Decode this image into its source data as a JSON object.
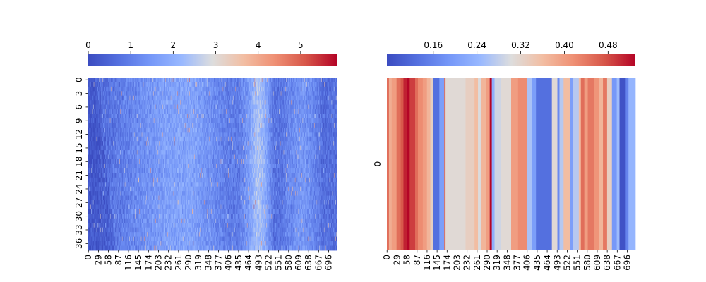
{
  "chart_data": [
    {
      "type": "heatmap",
      "colormap": "coolwarm",
      "colorbar": {
        "location": "top",
        "range": [
          0,
          5.85
        ],
        "ticks": [
          0,
          1,
          2,
          3,
          4,
          5
        ],
        "tick_labels": [
          "0",
          "1",
          "2",
          "3",
          "4",
          "5"
        ]
      },
      "rows": 38,
      "cols": 720,
      "x_tick_labels": [
        "0",
        "29",
        "58",
        "87",
        "116",
        "145",
        "174",
        "203",
        "232",
        "261",
        "290",
        "319",
        "348",
        "377",
        "406",
        "435",
        "464",
        "493",
        "522",
        "551",
        "580",
        "609",
        "638",
        "667",
        "696"
      ],
      "y_tick_labels": [
        "0",
        "3",
        "6",
        "9",
        "12",
        "15",
        "18",
        "21",
        "24",
        "27",
        "30",
        "33",
        "36"
      ],
      "column_profile": [
        {
          "x": 0,
          "v": 0.5
        },
        {
          "x": 40,
          "v": 0.65
        },
        {
          "x": 100,
          "v": 1.0
        },
        {
          "x": 170,
          "v": 1.4
        },
        {
          "x": 230,
          "v": 1.7
        },
        {
          "x": 300,
          "v": 1.75
        },
        {
          "x": 360,
          "v": 1.3
        },
        {
          "x": 410,
          "v": 0.95
        },
        {
          "x": 440,
          "v": 1.0
        },
        {
          "x": 460,
          "v": 1.5
        },
        {
          "x": 490,
          "v": 2.4
        },
        {
          "x": 505,
          "v": 2.2
        },
        {
          "x": 520,
          "v": 1.6
        },
        {
          "x": 535,
          "v": 0.8
        },
        {
          "x": 560,
          "v": 0.85
        },
        {
          "x": 590,
          "v": 1.3
        },
        {
          "x": 620,
          "v": 1.5
        },
        {
          "x": 650,
          "v": 1.2
        },
        {
          "x": 680,
          "v": 0.7
        },
        {
          "x": 719,
          "v": 0.7
        }
      ]
    },
    {
      "type": "heatmap",
      "colormap": "coolwarm",
      "colorbar": {
        "location": "top",
        "range": [
          0.075,
          0.53
        ],
        "ticks": [
          0.16,
          0.24,
          0.32,
          0.4,
          0.48
        ],
        "tick_labels": [
          "0.16",
          "0.24",
          "0.32",
          "0.40",
          "0.48"
        ]
      },
      "rows": 1,
      "cols": 720,
      "x_tick_labels": [
        "0",
        "29",
        "58",
        "87",
        "116",
        "145",
        "174",
        "203",
        "232",
        "261",
        "290",
        "319",
        "348",
        "377",
        "406",
        "435",
        "464",
        "493",
        "522",
        "551",
        "580",
        "609",
        "638",
        "667",
        "696"
      ],
      "y_tick_labels": [
        "0"
      ],
      "segments": [
        {
          "x0": 0,
          "x1": 6,
          "v": 0.45
        },
        {
          "x0": 6,
          "x1": 14,
          "v": 0.38
        },
        {
          "x0": 14,
          "x1": 28,
          "v": 0.4
        },
        {
          "x0": 28,
          "x1": 40,
          "v": 0.45
        },
        {
          "x0": 40,
          "x1": 48,
          "v": 0.47
        },
        {
          "x0": 48,
          "x1": 58,
          "v": 0.51
        },
        {
          "x0": 58,
          "x1": 66,
          "v": 0.53
        },
        {
          "x0": 66,
          "x1": 82,
          "v": 0.49
        },
        {
          "x0": 82,
          "x1": 90,
          "v": 0.45
        },
        {
          "x0": 90,
          "x1": 104,
          "v": 0.42
        },
        {
          "x0": 104,
          "x1": 116,
          "v": 0.4
        },
        {
          "x0": 116,
          "x1": 126,
          "v": 0.37
        },
        {
          "x0": 126,
          "x1": 134,
          "v": 0.33
        },
        {
          "x0": 134,
          "x1": 152,
          "v": 0.13
        },
        {
          "x0": 152,
          "x1": 166,
          "v": 0.2
        },
        {
          "x0": 166,
          "x1": 170,
          "v": 0.45
        },
        {
          "x0": 170,
          "x1": 228,
          "v": 0.31
        },
        {
          "x0": 228,
          "x1": 254,
          "v": 0.33
        },
        {
          "x0": 254,
          "x1": 264,
          "v": 0.36
        },
        {
          "x0": 264,
          "x1": 272,
          "v": 0.3
        },
        {
          "x0": 272,
          "x1": 288,
          "v": 0.37
        },
        {
          "x0": 288,
          "x1": 298,
          "v": 0.4
        },
        {
          "x0": 298,
          "x1": 304,
          "v": 0.53
        },
        {
          "x0": 304,
          "x1": 312,
          "v": 0.23
        },
        {
          "x0": 312,
          "x1": 330,
          "v": 0.29
        },
        {
          "x0": 330,
          "x1": 360,
          "v": 0.31
        },
        {
          "x0": 360,
          "x1": 380,
          "v": 0.4
        },
        {
          "x0": 380,
          "x1": 406,
          "v": 0.42
        },
        {
          "x0": 406,
          "x1": 420,
          "v": 0.26
        },
        {
          "x0": 420,
          "x1": 432,
          "v": 0.2
        },
        {
          "x0": 432,
          "x1": 478,
          "v": 0.13
        },
        {
          "x0": 478,
          "x1": 494,
          "v": 0.31
        },
        {
          "x0": 494,
          "x1": 500,
          "v": 0.17
        },
        {
          "x0": 500,
          "x1": 512,
          "v": 0.27
        },
        {
          "x0": 512,
          "x1": 530,
          "v": 0.36
        },
        {
          "x0": 530,
          "x1": 540,
          "v": 0.2
        },
        {
          "x0": 540,
          "x1": 556,
          "v": 0.27
        },
        {
          "x0": 556,
          "x1": 562,
          "v": 0.36
        },
        {
          "x0": 562,
          "x1": 572,
          "v": 0.45
        },
        {
          "x0": 572,
          "x1": 582,
          "v": 0.4
        },
        {
          "x0": 582,
          "x1": 600,
          "v": 0.44
        },
        {
          "x0": 600,
          "x1": 614,
          "v": 0.41
        },
        {
          "x0": 614,
          "x1": 626,
          "v": 0.37
        },
        {
          "x0": 626,
          "x1": 638,
          "v": 0.44
        },
        {
          "x0": 638,
          "x1": 652,
          "v": 0.33
        },
        {
          "x0": 652,
          "x1": 666,
          "v": 0.19
        },
        {
          "x0": 666,
          "x1": 674,
          "v": 0.25
        },
        {
          "x0": 674,
          "x1": 690,
          "v": 0.085
        },
        {
          "x0": 690,
          "x1": 700,
          "v": 0.16
        },
        {
          "x0": 700,
          "x1": 720,
          "v": 0.24
        }
      ]
    }
  ]
}
